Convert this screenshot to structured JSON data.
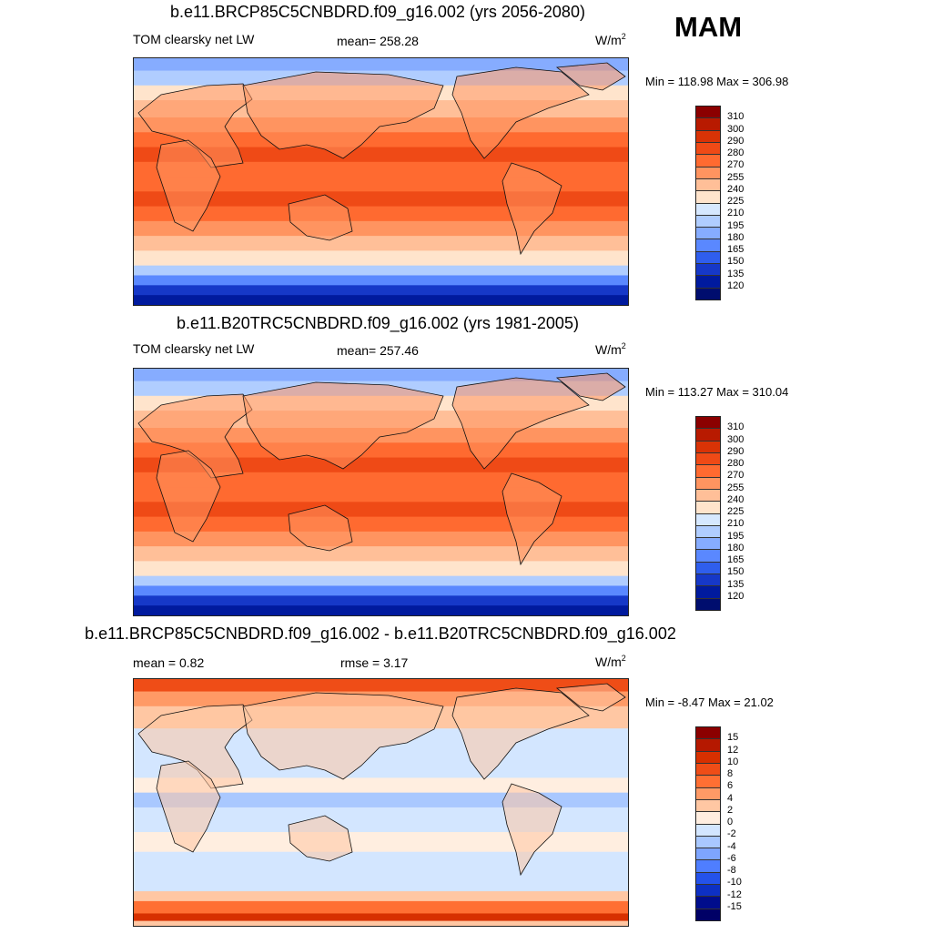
{
  "season": "MAM",
  "panels": [
    {
      "title": "b.e11.BRCP85C5CNBDRD.f09_g16.002 (yrs 2056-2080)",
      "left_label": "TOM clearsky net LW",
      "center_label": "mean= 258.28",
      "units": "W/m",
      "units_sup": "2",
      "minmax": "Min = 118.98 Max = 306.98",
      "ticks": [
        "310",
        "300",
        "290",
        "280",
        "270",
        "255",
        "240",
        "225",
        "210",
        "195",
        "180",
        "165",
        "150",
        "135",
        "120"
      ]
    },
    {
      "title": "b.e11.B20TRC5CNBDRD.f09_g16.002 (yrs 1981-2005)",
      "left_label": "TOM clearsky net LW",
      "center_label": "mean= 257.46",
      "units": "W/m",
      "units_sup": "2",
      "minmax": "Min = 113.27 Max = 310.04",
      "ticks": [
        "310",
        "300",
        "290",
        "280",
        "270",
        "255",
        "240",
        "225",
        "210",
        "195",
        "180",
        "165",
        "150",
        "135",
        "120"
      ]
    },
    {
      "title": "b.e11.BRCP85C5CNBDRD.f09_g16.002 - b.e11.B20TRC5CNBDRD.f09_g16.002",
      "left_label": "mean =   0.82",
      "center_label": "rmse =   3.17",
      "units": "W/m",
      "units_sup": "2",
      "minmax": "Min =  -8.47 Max =  21.02",
      "ticks": [
        "15",
        "12",
        "10",
        "8",
        "6",
        "4",
        "2",
        "0",
        "-2",
        "-4",
        "-6",
        "-8",
        "-10",
        "-12",
        "-15"
      ]
    }
  ],
  "colors": {
    "seq_palette": [
      "#8b0000",
      "#b81a00",
      "#d93306",
      "#ef4a16",
      "#ff6a30",
      "#ff9460",
      "#ffbf98",
      "#ffe4cc",
      "#d6e8ff",
      "#b0cdff",
      "#86acff",
      "#5a88ff",
      "#2f5eed",
      "#1638c8",
      "#001a9e",
      "#000d6e"
    ],
    "diff_palette": [
      "#8b0000",
      "#b51800",
      "#d73000",
      "#ef4d17",
      "#ff6f33",
      "#ff9a66",
      "#ffc7a3",
      "#ffeee0",
      "#d3e6ff",
      "#a9c8ff",
      "#7ea5ff",
      "#4f7eff",
      "#2452eb",
      "#0d30c4",
      "#000d8c",
      "#000066"
    ]
  }
}
